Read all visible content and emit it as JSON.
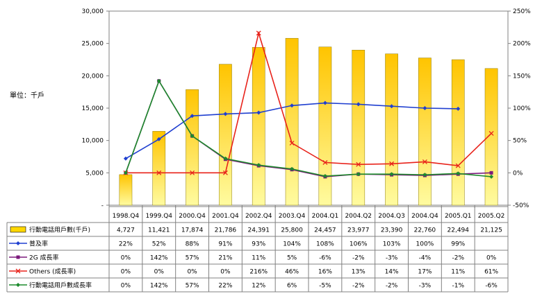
{
  "unit_label": "單位：千戶",
  "chart_data": {
    "type": "bar",
    "categories": [
      "1998.Q4",
      "1999.Q4",
      "2000.Q4",
      "2001.Q4",
      "2002.Q4",
      "2003.Q4",
      "2004.Q1",
      "2004.Q2",
      "2004.Q3",
      "2004.Q4",
      "2005.Q1",
      "2005.Q2"
    ],
    "left_axis": {
      "ylim": [
        0,
        30000
      ],
      "ticks": [
        "30,000",
        "25,000",
        "20,000",
        "15,000",
        "10,000",
        "5,000",
        "-"
      ],
      "tick_values": [
        30000,
        25000,
        20000,
        15000,
        10000,
        5000,
        0
      ]
    },
    "right_axis": {
      "ylim": [
        -50,
        250
      ],
      "ticks": [
        "250%",
        "200%",
        "150%",
        "100%",
        "50%",
        "0%",
        "-50%"
      ],
      "tick_values": [
        250,
        200,
        150,
        100,
        50,
        0,
        -50
      ]
    },
    "bar_series": {
      "name": "行動電話用戶數(千戶)",
      "color": "#FFD700",
      "values": [
        4727,
        11421,
        17874,
        21786,
        24391,
        25800,
        24457,
        23977,
        23390,
        22760,
        22494,
        21125
      ],
      "labels": [
        "4,727",
        "11,421",
        "17,874",
        "21,786",
        "24,391",
        "25,800",
        "24,457",
        "23,977",
        "23,390",
        "22,760",
        "22,494",
        "21,125"
      ]
    },
    "line_series": [
      {
        "name": "普及率",
        "color": "#1F3FD0",
        "marker": "diamond",
        "values": [
          22,
          52,
          88,
          91,
          93,
          104,
          108,
          106,
          103,
          100,
          99,
          null
        ],
        "labels": [
          "22%",
          "52%",
          "88%",
          "91%",
          "93%",
          "104%",
          "108%",
          "106%",
          "103%",
          "100%",
          "99%",
          ""
        ]
      },
      {
        "name": "2G 成長率",
        "color": "#7B1A7B",
        "marker": "square",
        "values": [
          0,
          142,
          57,
          21,
          11,
          5,
          -6,
          -2,
          -3,
          -4,
          -2,
          0
        ],
        "labels": [
          "0%",
          "142%",
          "57%",
          "21%",
          "11%",
          "5%",
          "-6%",
          "-2%",
          "-3%",
          "-4%",
          "-2%",
          "0%"
        ]
      },
      {
        "name": "Others (成長率)",
        "color": "#E8221A",
        "marker": "x",
        "values": [
          0,
          0,
          0,
          0,
          216,
          46,
          16,
          13,
          14,
          17,
          11,
          61
        ],
        "labels": [
          "0%",
          "0%",
          "0%",
          "0%",
          "216%",
          "46%",
          "16%",
          "13%",
          "14%",
          "17%",
          "11%",
          "61%"
        ]
      },
      {
        "name": "行動電話用戶數成長率",
        "color": "#1C8A2C",
        "marker": "diamond",
        "values": [
          0,
          142,
          57,
          22,
          12,
          6,
          -5,
          -2,
          -2,
          -3,
          -1,
          -6
        ],
        "labels": [
          "0%",
          "142%",
          "57%",
          "22%",
          "12%",
          "6%",
          "-5%",
          "-2%",
          "-2%",
          "-3%",
          "-1%",
          "-6%"
        ]
      }
    ],
    "grid": false,
    "legend": "table-bottom"
  }
}
